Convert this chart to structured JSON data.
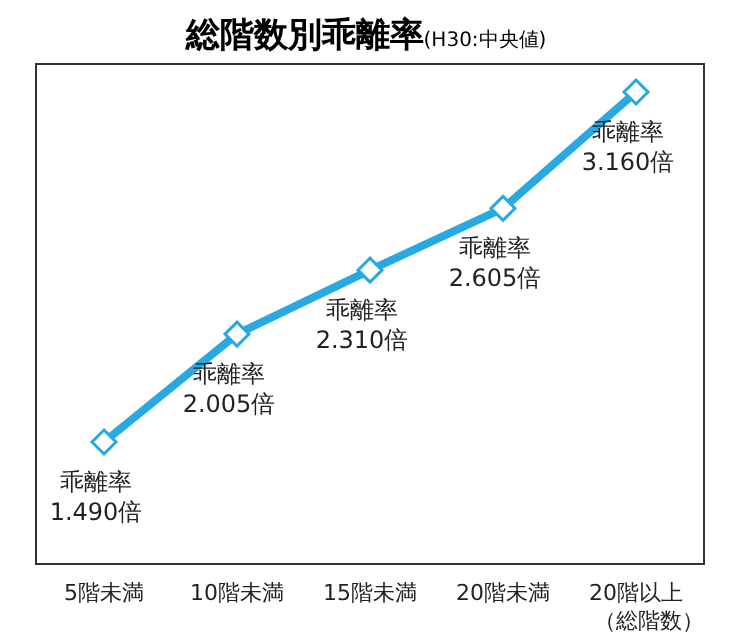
{
  "chart_data": {
    "type": "line",
    "title": "総階数別乖離率",
    "subtitle": "(H30:中央値)",
    "xlabel": "（総階数）",
    "categories": [
      "5階未満",
      "10階未満",
      "15階未満",
      "20階未満",
      "20階以上"
    ],
    "series": [
      {
        "color": "#29a9e1",
        "values": [
          1.49,
          2.005,
          2.31,
          2.605,
          3.16
        ],
        "value_labels": [
          "乖離率\n1.490倍",
          "乖離率\n2.005倍",
          "乖離率\n2.310倍",
          "乖離率\n2.605倍",
          "乖離率\n3.160倍"
        ]
      }
    ],
    "marker": "diamond",
    "line_style": "solid"
  }
}
